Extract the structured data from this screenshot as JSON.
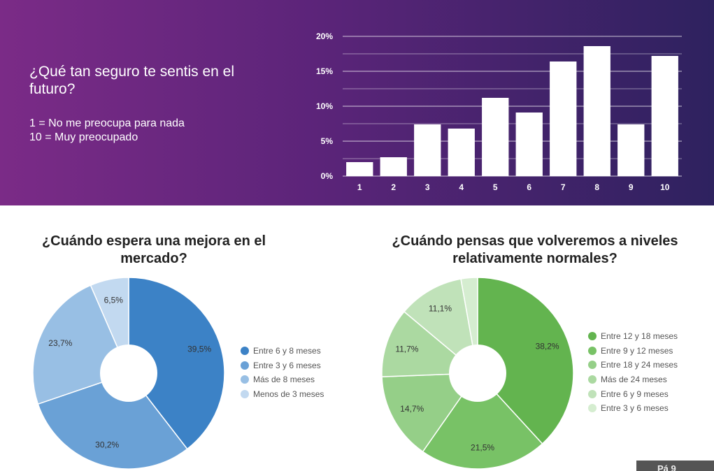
{
  "survey_question": {
    "title": "¿Qué tan seguro te sentis en el futuro?",
    "scale_low": "1 = No me preocupa para nada",
    "scale_high": "10 = Muy preocupado"
  },
  "page_tab_label": "Pá  9",
  "colors": {
    "banner_left": "#7b2b87",
    "banner_right": "#2e225f",
    "bar_fill": "#ffffff",
    "blue_series": [
      "#3c82c6",
      "#6aa1d6",
      "#98bfe4",
      "#c2d9f0"
    ],
    "green_series": [
      "#63b44f",
      "#78c266",
      "#95cf88",
      "#abd9a1",
      "#c0e2b9",
      "#d5edd0"
    ]
  },
  "chart_data": [
    {
      "type": "bar",
      "title": "",
      "categories": [
        "1",
        "2",
        "3",
        "4",
        "5",
        "6",
        "7",
        "8",
        "9",
        "10"
      ],
      "values": [
        2.0,
        2.7,
        7.4,
        6.8,
        11.2,
        9.1,
        16.4,
        18.6,
        7.4,
        17.2
      ],
      "ylim": [
        0,
        20
      ],
      "yticks": [
        "0%",
        "5%",
        "10%",
        "15%",
        "20%"
      ],
      "ytick_values": [
        0,
        5,
        10,
        15,
        20
      ],
      "grid": true,
      "xlabel": "",
      "ylabel": ""
    },
    {
      "type": "pie",
      "title": "¿Cuándo espera una mejora en el mercado?",
      "donut": true,
      "labels": [
        "Entre 6 y 8 meses",
        "Entre 3 y 6 meses",
        "Más de 8 meses",
        "Menos de 3 meses"
      ],
      "values": [
        39.5,
        30.2,
        23.7,
        6.5
      ],
      "value_labels": [
        "39,5%",
        "30,2%",
        "23,7%",
        "6,5%"
      ],
      "legend": "right"
    },
    {
      "type": "pie",
      "title": "¿Cuándo pensas que volveremos a niveles relativamente normales?",
      "donut": true,
      "labels": [
        "Entre 12 y 18 meses",
        "Entre 9 y 12 meses",
        "Entre 18 y 24 meses",
        "Más de 24 meses",
        "Entre 6 y 9 meses",
        "Entre 3 y 6 meses"
      ],
      "values": [
        38.2,
        21.5,
        14.7,
        11.7,
        11.1,
        2.8
      ],
      "value_labels": [
        "38,2%",
        "21,5%",
        "14,7%",
        "11,7%",
        "11,1%",
        ""
      ],
      "legend": "right"
    }
  ]
}
